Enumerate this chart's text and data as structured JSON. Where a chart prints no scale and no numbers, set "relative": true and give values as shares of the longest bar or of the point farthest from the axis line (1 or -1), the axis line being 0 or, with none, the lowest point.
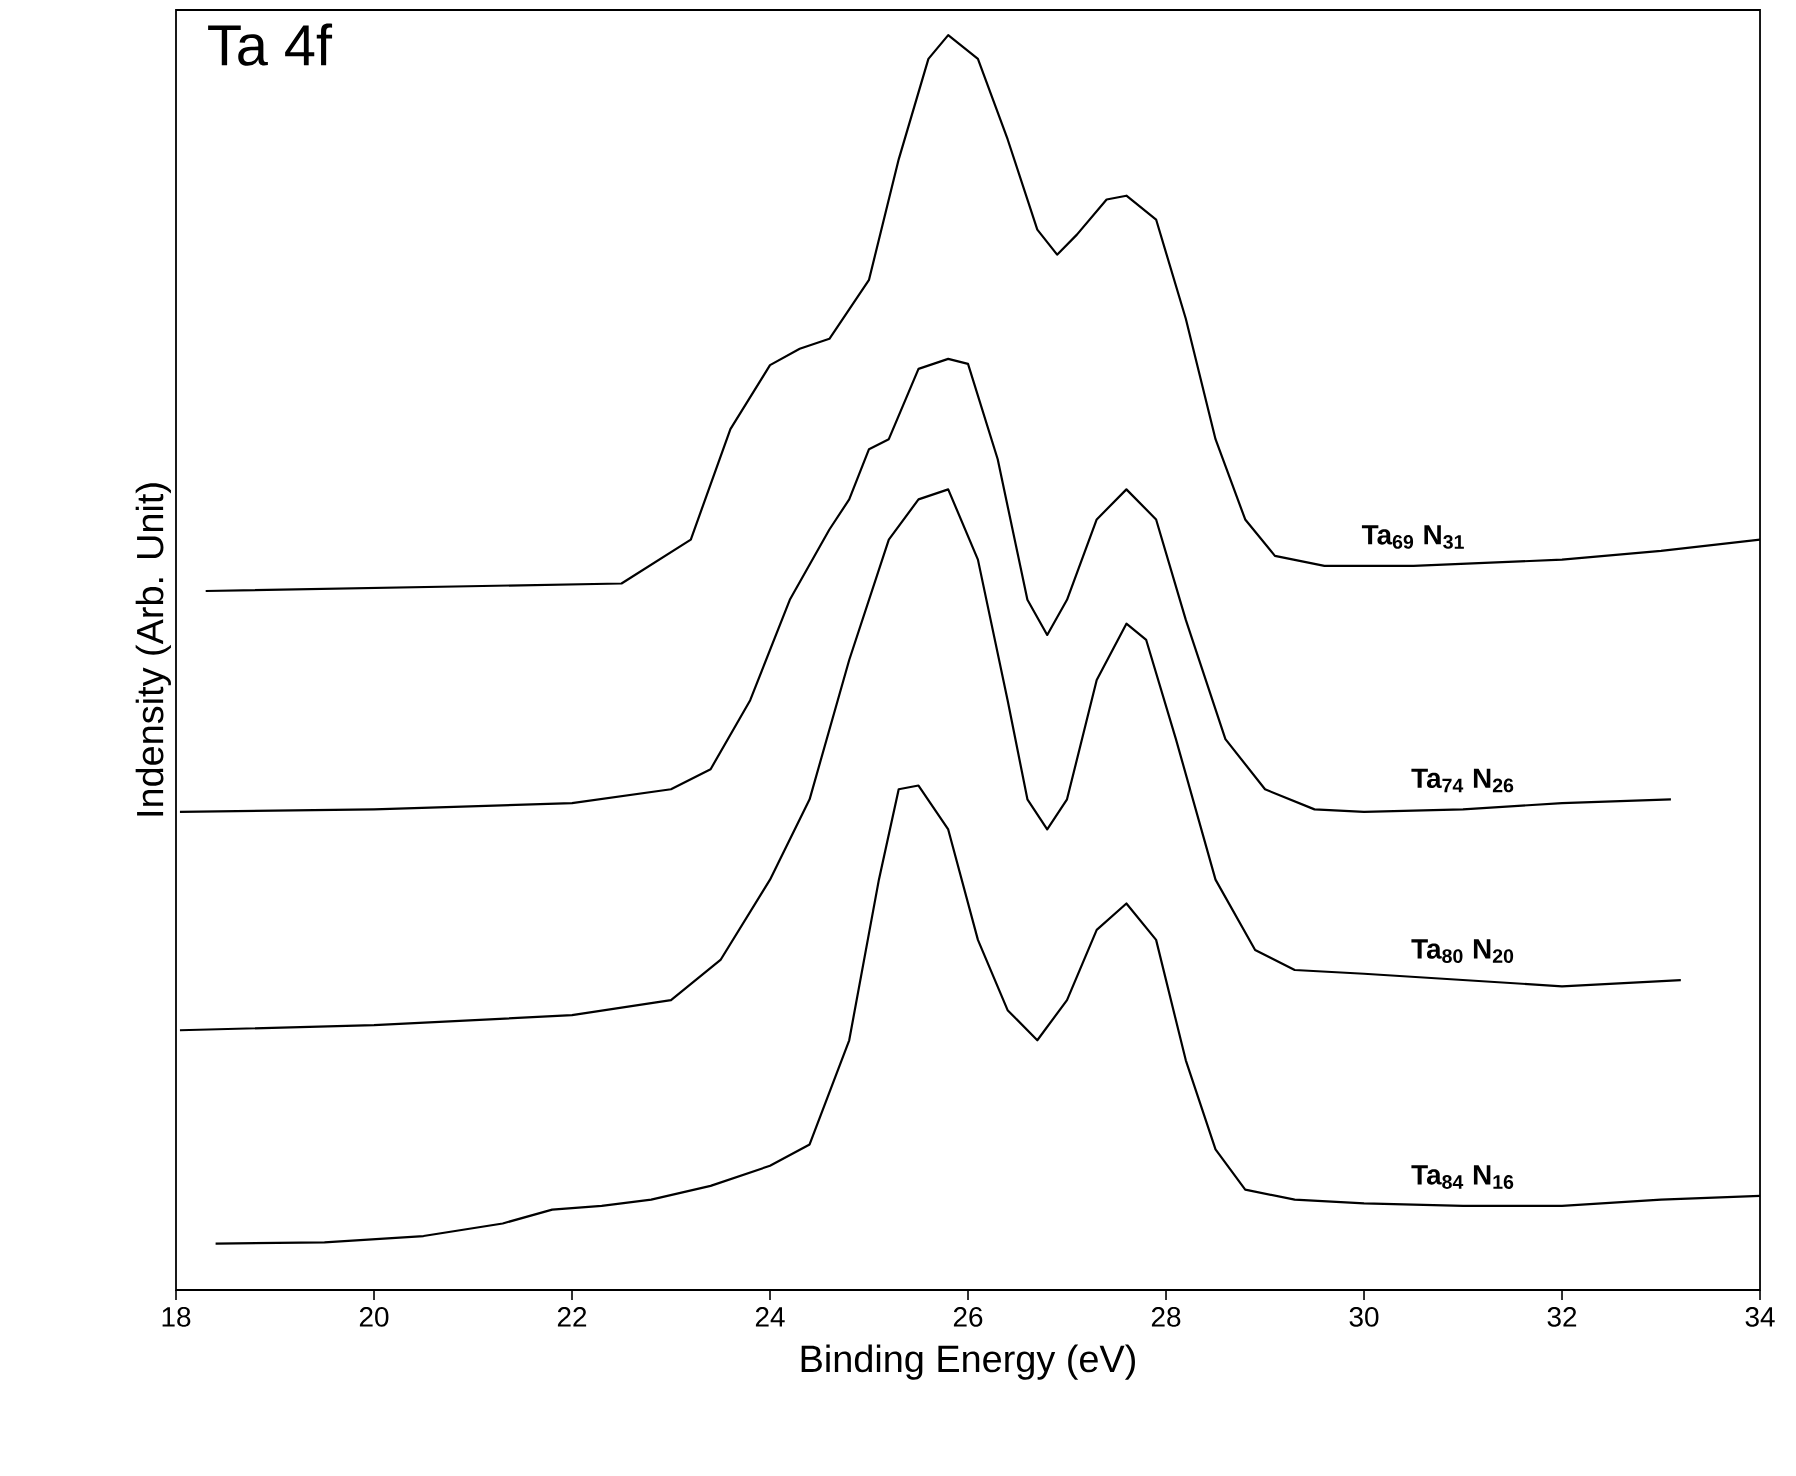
{
  "chart_data": {
    "type": "line",
    "title": "Ta 4f",
    "xlabel": "Binding Energy (eV)",
    "ylabel": "Indensity (Arb. Unit)",
    "relative": true,
    "xlim": [
      18,
      34
    ],
    "xticks": [
      18,
      20,
      22,
      24,
      26,
      28,
      30,
      32,
      34
    ],
    "grid": false,
    "marker": "none",
    "line_style": "solid",
    "series": [
      {
        "name": "Ta$_{69}$ N$_{31}$",
        "color": "#000000",
        "x": [
          18.3,
          22.5,
          23.2,
          23.6,
          24.0,
          24.3,
          24.6,
          25.0,
          25.3,
          25.6,
          25.8,
          26.1,
          26.4,
          26.7,
          26.9,
          27.1,
          27.4,
          27.6,
          27.9,
          28.2,
          28.5,
          28.8,
          29.1,
          29.6,
          30.5,
          32,
          33,
          34
        ],
        "values": [
          0.557,
          0.563,
          0.598,
          0.686,
          0.737,
          0.75,
          0.758,
          0.805,
          0.901,
          0.981,
          1.0,
          0.981,
          0.917,
          0.845,
          0.825,
          0.841,
          0.869,
          0.872,
          0.853,
          0.774,
          0.678,
          0.614,
          0.585,
          0.577,
          0.577,
          0.582,
          0.589,
          0.598
        ]
      },
      {
        "name": "Ta$_{74}$ N$_{26}$",
        "color": "#000000",
        "x": [
          18.04,
          20,
          22,
          23,
          23.4,
          23.8,
          24.2,
          24.6,
          24.8,
          25.0,
          25.2,
          25.5,
          25.8,
          26.0,
          26.3,
          26.6,
          26.8,
          27.0,
          27.3,
          27.6,
          27.9,
          28.2,
          28.6,
          29.0,
          29.5,
          30,
          31,
          32,
          33.1
        ],
        "values": [
          0.381,
          0.383,
          0.388,
          0.399,
          0.415,
          0.47,
          0.55,
          0.606,
          0.63,
          0.67,
          0.678,
          0.734,
          0.742,
          0.738,
          0.662,
          0.55,
          0.522,
          0.55,
          0.614,
          0.638,
          0.614,
          0.534,
          0.439,
          0.399,
          0.383,
          0.381,
          0.383,
          0.388,
          0.391
        ]
      },
      {
        "name": "Ta$_{80}$ N$_{20}$",
        "color": "#000000",
        "x": [
          18.04,
          20,
          22,
          23,
          23.5,
          24,
          24.4,
          24.8,
          25.2,
          25.5,
          25.8,
          26.1,
          26.4,
          26.6,
          26.8,
          27.0,
          27.3,
          27.6,
          27.8,
          28.1,
          28.5,
          28.9,
          29.3,
          30,
          31,
          32,
          33.2
        ],
        "values": [
          0.207,
          0.211,
          0.219,
          0.231,
          0.263,
          0.327,
          0.391,
          0.502,
          0.598,
          0.63,
          0.638,
          0.582,
          0.47,
          0.391,
          0.367,
          0.391,
          0.486,
          0.531,
          0.518,
          0.439,
          0.327,
          0.271,
          0.255,
          0.252,
          0.247,
          0.242,
          0.247
        ]
      },
      {
        "name": "Ta$_{84}$ N$_{16}$",
        "color": "#000000",
        "x": [
          18.4,
          19.5,
          20.5,
          21.3,
          21.8,
          22.3,
          22.8,
          23.4,
          24.0,
          24.4,
          24.8,
          25.1,
          25.3,
          25.5,
          25.8,
          26.1,
          26.4,
          26.7,
          27.0,
          27.3,
          27.6,
          27.9,
          28.2,
          28.5,
          28.8,
          29.3,
          30,
          31,
          32,
          33,
          34
        ],
        "values": [
          0.037,
          0.038,
          0.043,
          0.053,
          0.064,
          0.067,
          0.072,
          0.083,
          0.099,
          0.116,
          0.199,
          0.327,
          0.399,
          0.402,
          0.367,
          0.279,
          0.223,
          0.199,
          0.231,
          0.287,
          0.308,
          0.279,
          0.183,
          0.112,
          0.08,
          0.072,
          0.069,
          0.067,
          0.067,
          0.072,
          0.075
        ]
      }
    ]
  }
}
